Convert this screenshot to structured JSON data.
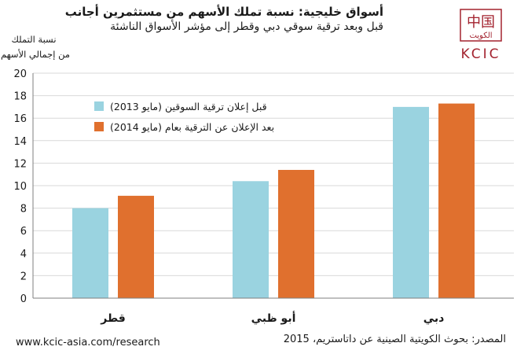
{
  "header": {
    "title": "أسواق خليجية: نسبة تملك الأسهم من مستثمرين أجانب",
    "subtitle": "قبل وبعد ترقية سوقي دبي وقطر إلى مؤشر الأسواق الناشئة"
  },
  "logo": {
    "icon": "kcic-logo-icon",
    "text": "KCIC",
    "glyph_cn": "中国",
    "glyph_ar": "الكويت",
    "color": "#a3232f"
  },
  "footer": {
    "website": "www.kcic-asia.com/research",
    "source": "المصدر: بحوث الكويتية الصينية عن داتاستريم، 2015"
  },
  "chart_data": {
    "type": "bar",
    "title": "",
    "ylabel_line1": "نسبة التملك",
    "ylabel_line2": "من إجمالي الأسهم",
    "xlabel": "",
    "ylim": [
      0,
      20
    ],
    "yticks": [
      0,
      2,
      4,
      6,
      8,
      10,
      12,
      14,
      16,
      18,
      20
    ],
    "grid": true,
    "legend_position": "top-left",
    "categories": [
      "قطر",
      "أبو ظبي",
      "دبي"
    ],
    "series": [
      {
        "name": "قبل إعلان ترقية السوقين (مايو 2013)",
        "color": "#9ad3e0",
        "values": [
          8.0,
          10.4,
          17.0
        ]
      },
      {
        "name": "بعد الإعلان عن الترقية بعام (مايو 2014)",
        "color": "#e0702e",
        "values": [
          9.1,
          11.4,
          17.3
        ]
      }
    ]
  }
}
